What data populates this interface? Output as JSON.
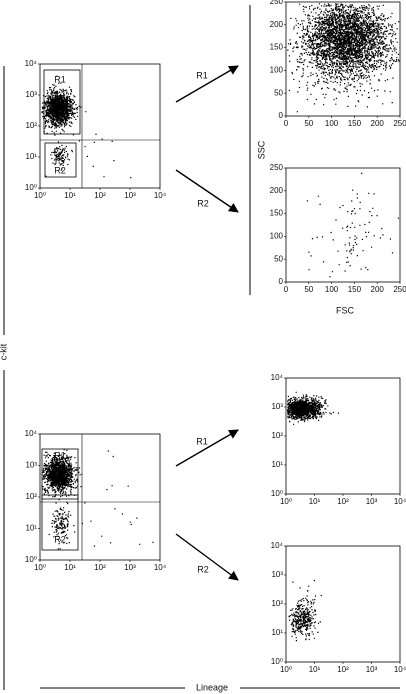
{
  "log_ticks": [
    "10⁰",
    "10¹",
    "10²",
    "10³",
    "10⁴"
  ],
  "linear_ticks": [
    "0",
    "50",
    "100",
    "150",
    "200",
    "250"
  ],
  "gates": {
    "r1": "R1",
    "r2": "R2"
  },
  "ssc": "SSC",
  "fsc": "FSC",
  "ckit": "c-kit",
  "lineage": "Lineage"
}
